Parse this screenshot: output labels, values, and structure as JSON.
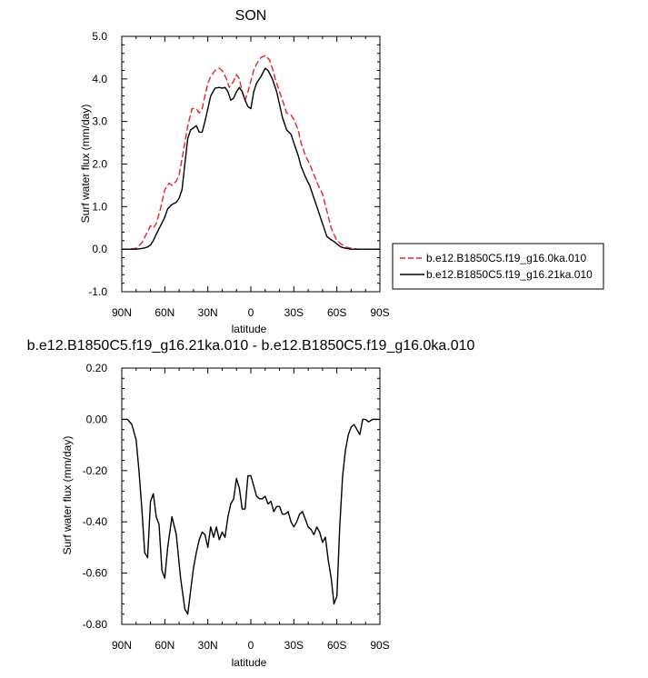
{
  "chart_data": [
    {
      "type": "line",
      "title": "SON",
      "xlabel": "latitude",
      "ylabel": "Surf water flux (mm/day)",
      "xlim": [
        90,
        -90
      ],
      "ylim": [
        -1.0,
        5.0
      ],
      "xticks": [
        90,
        60,
        30,
        0,
        -30,
        -60,
        -90
      ],
      "xtick_labels": [
        "90N",
        "60N",
        "30N",
        "0",
        "30S",
        "60S",
        "90S"
      ],
      "yticks": [
        -1.0,
        0.0,
        1.0,
        2.0,
        3.0,
        4.0,
        5.0
      ],
      "ytick_labels": [
        "-1.0",
        "0.0",
        "1.0",
        "2.0",
        "3.0",
        "4.0",
        "5.0"
      ],
      "legend_position": "right",
      "series": [
        {
          "name": "b.e12.B1850C5.f19_g16.0ka.010",
          "color": "#e8202a",
          "dash": "dashed",
          "x": [
            90,
            85,
            80,
            76,
            73,
            70,
            68,
            66,
            63,
            60,
            57,
            55,
            52,
            50,
            47,
            44,
            41,
            38,
            36,
            34,
            32,
            30,
            28,
            25,
            22,
            20,
            17,
            15,
            12,
            10,
            8,
            6,
            4,
            2,
            0,
            -2,
            -4,
            -7,
            -10,
            -13,
            -15,
            -17,
            -20,
            -23,
            -25,
            -28,
            -30,
            -33,
            -35,
            -38,
            -41,
            -44,
            -47,
            -50,
            -53,
            -56,
            -58,
            -60,
            -63,
            -66,
            -70,
            -75,
            -80,
            -85,
            -90
          ],
          "y": [
            0.0,
            0.0,
            0.02,
            0.15,
            0.35,
            0.55,
            0.5,
            0.6,
            0.95,
            1.4,
            1.55,
            1.5,
            1.6,
            1.75,
            2.3,
            2.9,
            3.3,
            3.3,
            3.2,
            3.3,
            3.6,
            3.9,
            4.05,
            4.2,
            4.25,
            4.2,
            4.0,
            3.8,
            3.95,
            4.1,
            4.0,
            3.7,
            3.5,
            3.7,
            3.95,
            4.2,
            4.35,
            4.5,
            4.55,
            4.45,
            4.25,
            4.0,
            3.7,
            3.4,
            3.2,
            3.15,
            3.05,
            2.8,
            2.5,
            2.2,
            2.0,
            1.75,
            1.5,
            1.3,
            0.9,
            0.5,
            0.35,
            0.2,
            0.12,
            0.05,
            0.02,
            0.0,
            0.0,
            0.0,
            0.0
          ]
        },
        {
          "name": "b.e12.B1850C5.f19_g16.21ka.010",
          "color": "#000000",
          "dash": "solid",
          "x": [
            90,
            85,
            80,
            75,
            72,
            70,
            68,
            66,
            63,
            60,
            58,
            55,
            52,
            50,
            48,
            46,
            44,
            42,
            40,
            38,
            36,
            34,
            32,
            30,
            28,
            25,
            22,
            20,
            18,
            16,
            14,
            12,
            10,
            8,
            6,
            4,
            2,
            0,
            -2,
            -4,
            -7,
            -10,
            -12,
            -15,
            -18,
            -20,
            -22,
            -25,
            -28,
            -30,
            -33,
            -35,
            -38,
            -41,
            -44,
            -47,
            -50,
            -53,
            -56,
            -58,
            -60,
            -63,
            -66,
            -70,
            -75,
            -80,
            -85,
            -90
          ],
          "y": [
            0.0,
            0.0,
            0.0,
            0.02,
            0.05,
            0.1,
            0.2,
            0.35,
            0.55,
            0.75,
            0.95,
            1.05,
            1.1,
            1.2,
            1.4,
            2.0,
            2.6,
            2.8,
            2.85,
            2.9,
            2.75,
            2.75,
            3.0,
            3.3,
            3.6,
            3.78,
            3.8,
            3.78,
            3.8,
            3.7,
            3.5,
            3.55,
            3.7,
            3.8,
            3.7,
            3.5,
            3.35,
            3.3,
            3.7,
            3.9,
            4.05,
            4.25,
            4.2,
            4.0,
            3.7,
            3.4,
            3.1,
            2.8,
            2.7,
            2.5,
            2.2,
            1.95,
            1.7,
            1.5,
            1.2,
            0.9,
            0.6,
            0.3,
            0.22,
            0.18,
            0.12,
            0.05,
            0.02,
            0.0,
            0.0,
            0.0,
            0.0,
            0.0
          ]
        }
      ]
    },
    {
      "type": "line",
      "title": "b.e12.B1850C5.f19_g16.21ka.010 - b.e12.B1850C5.f19_g16.0ka.010",
      "xlabel": "latitude",
      "ylabel": "Surf water flux (mm/day)",
      "xlim": [
        90,
        -90
      ],
      "ylim": [
        -0.8,
        0.2
      ],
      "xticks": [
        90,
        60,
        30,
        0,
        -30,
        -60,
        -90
      ],
      "xtick_labels": [
        "90N",
        "60N",
        "30N",
        "0",
        "30S",
        "60S",
        "90S"
      ],
      "yticks": [
        -0.8,
        -0.6,
        -0.4,
        -0.2,
        0.0,
        0.2
      ],
      "ytick_labels": [
        "-0.80",
        "-0.60",
        "-0.40",
        "-0.20",
        "0.00",
        "0.20"
      ],
      "series": [
        {
          "color": "#000000",
          "dash": "solid",
          "x": [
            90,
            86,
            83,
            80,
            78,
            76,
            74,
            72,
            70,
            68,
            66,
            64,
            62,
            60,
            58,
            55,
            52,
            49,
            46,
            44,
            42,
            40,
            38,
            36,
            34,
            32,
            30,
            28,
            26,
            24,
            22,
            20,
            18,
            16,
            14,
            12,
            10,
            8,
            6,
            4,
            2,
            0,
            -2,
            -4,
            -6,
            -8,
            -10,
            -12,
            -14,
            -16,
            -18,
            -20,
            -22,
            -24,
            -26,
            -28,
            -30,
            -32,
            -34,
            -36,
            -38,
            -40,
            -42,
            -44,
            -46,
            -48,
            -50,
            -52,
            -54,
            -56,
            -58,
            -60,
            -62,
            -64,
            -66,
            -68,
            -70,
            -72,
            -74,
            -76,
            -78,
            -80,
            -82,
            -85,
            -88,
            -90
          ],
          "y": [
            0.0,
            0.0,
            -0.02,
            -0.08,
            -0.2,
            -0.35,
            -0.52,
            -0.54,
            -0.32,
            -0.29,
            -0.38,
            -0.41,
            -0.59,
            -0.62,
            -0.5,
            -0.38,
            -0.45,
            -0.62,
            -0.74,
            -0.76,
            -0.67,
            -0.58,
            -0.52,
            -0.47,
            -0.44,
            -0.45,
            -0.5,
            -0.42,
            -0.46,
            -0.42,
            -0.47,
            -0.44,
            -0.46,
            -0.38,
            -0.33,
            -0.31,
            -0.23,
            -0.27,
            -0.35,
            -0.35,
            -0.22,
            -0.22,
            -0.26,
            -0.3,
            -0.31,
            -0.31,
            -0.3,
            -0.33,
            -0.32,
            -0.36,
            -0.34,
            -0.34,
            -0.37,
            -0.37,
            -0.36,
            -0.4,
            -0.42,
            -0.4,
            -0.37,
            -0.36,
            -0.39,
            -0.42,
            -0.43,
            -0.45,
            -0.42,
            -0.44,
            -0.48,
            -0.46,
            -0.55,
            -0.62,
            -0.72,
            -0.69,
            -0.42,
            -0.22,
            -0.12,
            -0.06,
            -0.03,
            -0.02,
            -0.04,
            -0.06,
            0.0,
            0.0,
            -0.01,
            0.0,
            0.0,
            0.0
          ]
        }
      ]
    }
  ]
}
